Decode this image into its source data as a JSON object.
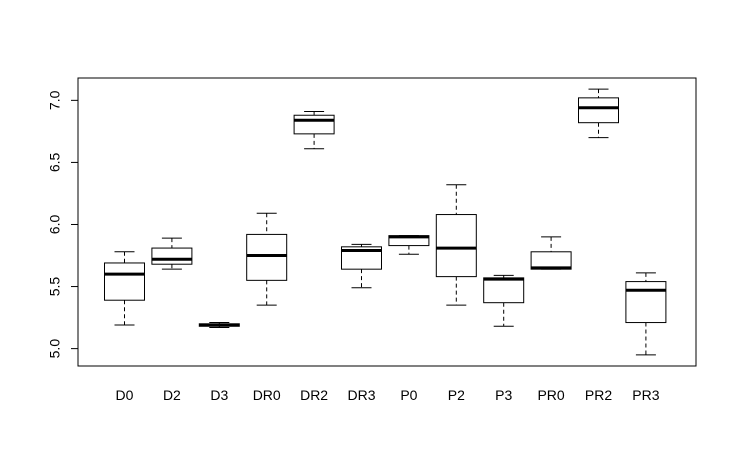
{
  "chart_data": {
    "type": "boxplot",
    "title": "",
    "xlabel": "",
    "ylabel": "",
    "ylim": [
      4.86,
      7.18
    ],
    "yticks": [
      5.0,
      5.5,
      6.0,
      6.5,
      7.0
    ],
    "ytick_labels": [
      "5.0",
      "5.5",
      "6.0",
      "6.5",
      "7.0"
    ],
    "grid": false,
    "categories": [
      "D0",
      "D2",
      "D3",
      "DR0",
      "DR2",
      "DR3",
      "P0",
      "P2",
      "P3",
      "PR0",
      "PR2",
      "PR3"
    ],
    "boxes": [
      {
        "label": "D0",
        "min": 5.19,
        "q1": 5.39,
        "median": 5.6,
        "q3": 5.69,
        "max": 5.78
      },
      {
        "label": "D2",
        "min": 5.64,
        "q1": 5.68,
        "median": 5.72,
        "q3": 5.81,
        "max": 5.89
      },
      {
        "label": "D3",
        "min": 5.17,
        "q1": 5.18,
        "median": 5.19,
        "q3": 5.2,
        "max": 5.21
      },
      {
        "label": "DR0",
        "min": 5.35,
        "q1": 5.55,
        "median": 5.75,
        "q3": 5.92,
        "max": 6.09
      },
      {
        "label": "DR2",
        "min": 6.61,
        "q1": 6.73,
        "median": 6.84,
        "q3": 6.88,
        "max": 6.91
      },
      {
        "label": "DR3",
        "min": 5.49,
        "q1": 5.64,
        "median": 5.79,
        "q3": 5.82,
        "max": 5.84
      },
      {
        "label": "P0",
        "min": 5.76,
        "q1": 5.83,
        "median": 5.9,
        "q3": 5.91,
        "max": 5.91
      },
      {
        "label": "P2",
        "min": 5.35,
        "q1": 5.58,
        "median": 5.81,
        "q3": 6.08,
        "max": 6.32
      },
      {
        "label": "P3",
        "min": 5.18,
        "q1": 5.37,
        "median": 5.56,
        "q3": 5.57,
        "max": 5.59
      },
      {
        "label": "PR0",
        "min": 5.64,
        "q1": 5.64,
        "median": 5.65,
        "q3": 5.78,
        "max": 5.9
      },
      {
        "label": "PR2",
        "min": 6.7,
        "q1": 6.82,
        "median": 6.94,
        "q3": 7.02,
        "max": 7.09
      },
      {
        "label": "PR3",
        "min": 4.95,
        "q1": 5.21,
        "median": 5.47,
        "q3": 5.54,
        "max": 5.61
      }
    ]
  }
}
